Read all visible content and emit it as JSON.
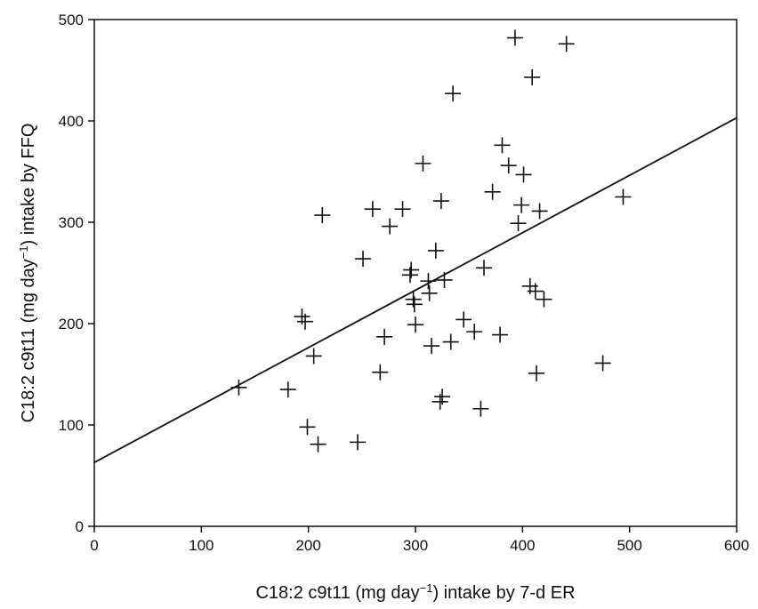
{
  "chart_data": {
    "type": "scatter",
    "title": "",
    "xlabel_parts": [
      "C18:2 c9t11 (mg day",
      "−1",
      ") intake by 7-d ER"
    ],
    "ylabel_parts": [
      "C18:2 c9t11 (mg day",
      "−1",
      ") intake by FFQ"
    ],
    "xlim": [
      0,
      600
    ],
    "ylim": [
      0,
      500
    ],
    "xticks": [
      0,
      100,
      200,
      300,
      400,
      500,
      600
    ],
    "yticks": [
      0,
      100,
      200,
      300,
      400,
      500
    ],
    "grid": false,
    "marker": "plus",
    "regression_line": {
      "x": [
        0,
        600
      ],
      "y": [
        63,
        403
      ]
    },
    "points": [
      [
        135,
        137
      ],
      [
        181,
        135
      ],
      [
        194,
        207
      ],
      [
        197,
        202
      ],
      [
        199,
        98
      ],
      [
        205,
        168
      ],
      [
        209,
        81
      ],
      [
        213,
        307
      ],
      [
        246,
        83
      ],
      [
        251,
        264
      ],
      [
        260,
        313
      ],
      [
        267,
        152
      ],
      [
        271,
        187
      ],
      [
        276,
        296
      ],
      [
        288,
        313
      ],
      [
        295,
        248
      ],
      [
        296,
        253
      ],
      [
        298,
        224
      ],
      [
        299,
        219
      ],
      [
        300,
        199
      ],
      [
        307,
        358
      ],
      [
        312,
        242
      ],
      [
        313,
        230
      ],
      [
        315,
        178
      ],
      [
        319,
        272
      ],
      [
        323,
        123
      ],
      [
        324,
        321
      ],
      [
        325,
        128
      ],
      [
        327,
        243
      ],
      [
        333,
        182
      ],
      [
        335,
        427
      ],
      [
        345,
        204
      ],
      [
        355,
        192
      ],
      [
        361,
        116
      ],
      [
        364,
        255
      ],
      [
        372,
        330
      ],
      [
        379,
        189
      ],
      [
        381,
        376
      ],
      [
        387,
        356
      ],
      [
        393,
        482
      ],
      [
        396,
        299
      ],
      [
        399,
        317
      ],
      [
        401,
        347
      ],
      [
        407,
        237
      ],
      [
        409,
        443
      ],
      [
        412,
        232
      ],
      [
        413,
        151
      ],
      [
        416,
        311
      ],
      [
        420,
        224
      ],
      [
        441,
        476
      ],
      [
        475,
        161
      ],
      [
        494,
        325
      ]
    ]
  }
}
